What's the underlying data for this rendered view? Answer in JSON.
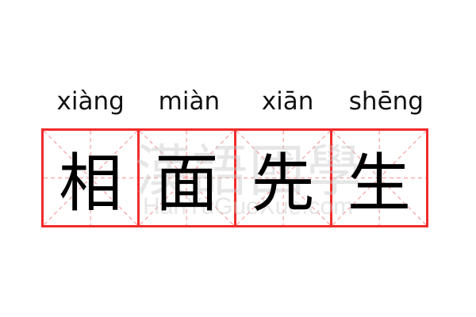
{
  "entries": [
    {
      "pinyin": "xiàng",
      "hanzi": "相"
    },
    {
      "pinyin": "miàn",
      "hanzi": "面"
    },
    {
      "pinyin": "xiān",
      "hanzi": "先"
    },
    {
      "pinyin": "shēng",
      "hanzi": "生"
    }
  ],
  "watermark": {
    "chinese": "漢語國學",
    "latin": "HanYuGuoXue.com"
  },
  "colors": {
    "grid_border": "#f12b2b",
    "guide_lines": "#f8a0a0",
    "text": "#000000"
  }
}
